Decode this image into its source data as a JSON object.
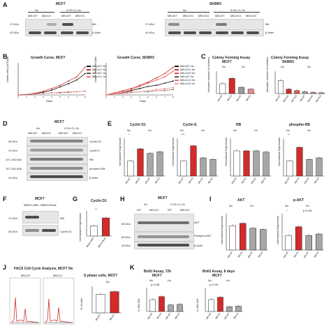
{
  "panels": {
    "A": {
      "label": "A",
      "left": {
        "title": "MCF7",
        "cond1": "Nx",
        "cond2": "0.2% O₂ Hx",
        "lanes": [
          "MB-WT",
          "MB-KO",
          "MB-WT",
          "MB-KO"
        ],
        "kda": [
          "17 kDa",
          "42 kDa"
        ],
        "rows": [
          "Mb",
          "β-Actin"
        ]
      },
      "right": {
        "title": "SKBR3",
        "cond1": "Nx",
        "cond2": "0.2% O₂ Hx",
        "lanes": [
          "MB-WT",
          "MB-KO1",
          "MB-KO2",
          "MB-WT",
          "MB-KO1",
          "MB-KO2"
        ],
        "kda": [
          "17 kDa",
          "42 kDa"
        ],
        "rows": [
          "Mb",
          "β-Actin"
        ]
      }
    },
    "B": {
      "label": "B",
      "left_title": "Growth Curve, MCF7",
      "right_title": "Growth Curve, SKBR3",
      "ylabel": "Viable cells [x10⁴]/ml",
      "xlabel": "Days",
      "left_legend": [
        "MB-WT, Nx",
        "MB-KO, Nx",
        "MB-WT, Hx",
        "MB-KO, Hx"
      ],
      "right_legend": [
        "MB-WT, Nx",
        "MB-KO1 Nx",
        "MB-KO2 Nx",
        "MB-WT Hx",
        "MB-KO1 Hx",
        "MB-KO2 Hx"
      ]
    },
    "C": {
      "label": "C",
      "left_title": "Colony Forming Assay",
      "left_sub": "MCF7",
      "right_title": "Colony Forming Assay",
      "right_sub": "SKBR3",
      "ylabel": "Absolute number of colonies",
      "cond1": "Nx",
      "cond2": "Hx",
      "left_x": [
        "MB-WT",
        "MB-KO",
        "MB-WT",
        "MB-KO"
      ],
      "right_x": [
        "MB-WT",
        "MB-KO1",
        "MB-KO2",
        "MB-WT",
        "MB-KO1",
        "MB-KO2"
      ]
    },
    "D": {
      "label": "D",
      "title": "MCF7",
      "cond1": "Nx",
      "cond2": "0.2% O₂ Hx",
      "lanes": [
        "MB-WT",
        "MB-KO",
        "MB-WT",
        "MB-KO"
      ],
      "kda": [
        "36 kDa",
        "47 kDa",
        "107-145 kDa",
        "107-145 kDa",
        "42 kDa"
      ],
      "rows": [
        "Cyclin D1",
        "Cyclin E",
        "RB",
        "phospho-RB",
        "β-Actin"
      ]
    },
    "E": {
      "label": "E",
      "ylabel": "Normalized Expression",
      "sets": [
        {
          "title": "Cyclin D1",
          "sig": "*",
          "x": [
            "MB-WT",
            "MB-KO",
            "MB-WT",
            "MB-KO"
          ]
        },
        {
          "title": "Cyclin E",
          "sig": "***",
          "x": [
            "MB-WT",
            "MB-KO",
            "MB-WT",
            "MB-KO"
          ]
        },
        {
          "title": "RB",
          "sig": "",
          "x": [
            "MB-WT",
            "MB-KO",
            "MB-WT",
            "MB-KO"
          ]
        },
        {
          "title": "phospho-RB",
          "sig": "**",
          "x": [
            "MB-WT",
            "MB-KO",
            "MB-WT",
            "MB-KO"
          ]
        }
      ],
      "cond1": "Nx",
      "cond2": "Hx"
    },
    "F": {
      "label": "F",
      "title": "MCF7",
      "lanes": [
        "MBKO-WBn",
        "MBKO-Mock"
      ],
      "kda": [
        "17 kDa",
        "36 kDa"
      ],
      "rows": [
        "MB",
        "Cyclin D1"
      ]
    },
    "G": {
      "label": "G",
      "title": "Cyclin D1",
      "sig": "**",
      "ylabel": "Normalized Expression",
      "x": [
        "MBKO-WBn",
        "MBKO-Mock"
      ]
    },
    "H": {
      "label": "H",
      "title": "MCF7",
      "cond1": "Nx",
      "cond2": "0.2% O₂ Hx",
      "lanes": [
        "WT",
        "MB-KO",
        "WT",
        "MB-KO"
      ],
      "kda": [
        "60 kDa",
        "60 kDa",
        "42 kDa"
      ],
      "rows": [
        "AKT",
        "Phospho-AKT",
        "β-Actin"
      ]
    },
    "I": {
      "label": "I",
      "left_title": "AKT",
      "right_title": "p-AKT",
      "ylabel": "Normalized Expression",
      "cond1": "Nx",
      "cond2": "Hx",
      "sig": "*",
      "pval": "p=0.08",
      "x": [
        "MB-WT",
        "MB-KO",
        "MB-WT",
        "MB-KO"
      ]
    },
    "J": {
      "label": "J",
      "title": "FACS Cell Cycle Analysis, MCF7 Nx",
      "left_sub": "MB-WT",
      "right_sub": "MB-KO",
      "bar_title": "S phase cells, MCF7",
      "cond": "Nx",
      "ylabel": "% of cells",
      "x": [
        "MB-WT",
        "MB-KO"
      ]
    },
    "K": {
      "label": "K",
      "left_title": "BrdU Assay, 72h",
      "left_sub": "MCF7",
      "right_title": "BrdU Assay, 8 days",
      "right_sub": "MCF7",
      "ylabel": "A 450-620",
      "cond1": "Nx",
      "cond2": "Hx",
      "left_p": "p=0.08",
      "right_p": "p=0.06",
      "x": [
        "MB-WT",
        "MB-KO",
        "MB-WT",
        "MB-KO"
      ]
    }
  },
  "chart_data": [
    {
      "type": "line",
      "title": "Growth Curve, MCF7",
      "xlabel": "Days",
      "ylabel": "Viable cells [x10⁴]/ml",
      "x": [
        0,
        1,
        2,
        3,
        4,
        5,
        6,
        7,
        8
      ],
      "series": [
        {
          "name": "MB-WT, Nx",
          "values": [
            0,
            1,
            2,
            5,
            9,
            15,
            21,
            28,
            40
          ]
        },
        {
          "name": "MB-KO, Nx",
          "values": [
            0,
            1,
            3,
            7,
            12,
            18,
            26,
            34,
            52
          ]
        },
        {
          "name": "MB-WT, Hx",
          "values": [
            0,
            1,
            2,
            3,
            4,
            4,
            5,
            6,
            7
          ]
        },
        {
          "name": "MB-KO, Hx",
          "values": [
            0,
            1,
            2,
            3,
            4,
            5,
            6,
            6,
            7
          ]
        }
      ],
      "ylim": [
        0,
        60
      ]
    },
    {
      "type": "line",
      "title": "Growth Curve, SKBR3",
      "xlabel": "Days",
      "ylabel": "Viable cells [x10⁴]/ml",
      "x": [
        0,
        1,
        2,
        3,
        4,
        5,
        6,
        7,
        8
      ],
      "series": [
        {
          "name": "MB-WT, Nx",
          "values": [
            0,
            1,
            2,
            4,
            6,
            8,
            9,
            11,
            13
          ]
        },
        {
          "name": "MB-KO1 Nx",
          "values": [
            0,
            2,
            4,
            6,
            9,
            12,
            16,
            20,
            26
          ]
        },
        {
          "name": "MB-KO2 Nx",
          "values": [
            0,
            1,
            3,
            5,
            8,
            11,
            14,
            17,
            22
          ]
        },
        {
          "name": "MB-WT Hx",
          "values": [
            0,
            1,
            2,
            2,
            3,
            3,
            4,
            4,
            5
          ]
        },
        {
          "name": "MB-KO1 Hx",
          "values": [
            0,
            1,
            2,
            3,
            3,
            4,
            5,
            6,
            7
          ]
        },
        {
          "name": "MB-KO2 Hx",
          "values": [
            0,
            1,
            1,
            2,
            3,
            4,
            4,
            5,
            6
          ]
        }
      ],
      "ylim": [
        0,
        30
      ]
    },
    {
      "type": "bar",
      "title": "Colony Forming Assay MCF7",
      "categories": [
        "MB-WT Nx",
        "MB-KO Nx",
        "MB-WT Hx",
        "MB-KO Hx"
      ],
      "values": [
        110,
        170,
        70,
        50
      ],
      "ylim": [
        0,
        250
      ]
    },
    {
      "type": "bar",
      "title": "Colony Forming Assay SKBR3",
      "categories": [
        "MB-WT Nx",
        "MB-KO1 Nx",
        "MB-KO2 Nx",
        "MB-WT Hx",
        "MB-KO1 Hx",
        "MB-KO2 Hx"
      ],
      "values": [
        35,
        12,
        8,
        5,
        3,
        2
      ],
      "ylim": [
        0,
        60
      ]
    },
    {
      "type": "bar",
      "title": "Cyclin D1",
      "categories": [
        "MB-WT Nx",
        "MB-KO Nx",
        "MB-WT Hx",
        "MB-KO Hx"
      ],
      "values": [
        1.0,
        1.8,
        1.5,
        1.6
      ],
      "ylim": [
        0,
        2.5
      ]
    },
    {
      "type": "bar",
      "title": "Cyclin E",
      "categories": [
        "MB-WT Nx",
        "MB-KO Nx",
        "MB-WT Hx",
        "MB-KO Hx"
      ],
      "values": [
        1.0,
        2.0,
        1.2,
        1.1
      ],
      "ylim": [
        0,
        2.5
      ]
    },
    {
      "type": "bar",
      "title": "RB",
      "categories": [
        "MB-WT Nx",
        "MB-KO Nx",
        "MB-WT Hx",
        "MB-KO Hx"
      ],
      "values": [
        1.0,
        1.0,
        1.0,
        0.95
      ],
      "ylim": [
        0,
        1.5
      ]
    },
    {
      "type": "bar",
      "title": "phospho-RB",
      "categories": [
        "MB-WT Nx",
        "MB-KO Nx",
        "MB-WT Hx",
        "MB-KO Hx"
      ],
      "values": [
        1.0,
        1.9,
        1.1,
        1.2
      ],
      "ylim": [
        0,
        2.5
      ]
    },
    {
      "type": "bar",
      "title": "Cyclin D1",
      "categories": [
        "MBKO-WBn",
        "MBKO-Mock"
      ],
      "values": [
        1.0,
        1.8
      ],
      "ylim": [
        0,
        2.5
      ]
    },
    {
      "type": "bar",
      "title": "AKT",
      "categories": [
        "MB-WT Nx",
        "MB-KO Nx",
        "MB-WT Hx",
        "MB-KO Hx"
      ],
      "values": [
        1.0,
        1.1,
        0.9,
        0.85
      ],
      "ylim": [
        0,
        1.5
      ]
    },
    {
      "type": "bar",
      "title": "p-AKT",
      "categories": [
        "MB-WT Nx",
        "MB-KO Nx",
        "MB-WT Hx",
        "MB-KO Hx"
      ],
      "values": [
        1.0,
        1.6,
        1.0,
        1.1
      ],
      "ylim": [
        0,
        2.5
      ]
    },
    {
      "type": "bar",
      "title": "S phase cells, MCF7",
      "categories": [
        "MB-WT",
        "MB-KO"
      ],
      "values": [
        28,
        32
      ],
      "ylim": [
        0,
        40
      ]
    },
    {
      "type": "bar",
      "title": "BrdU Assay, 72h",
      "categories": [
        "MB-WT Nx",
        "MB-KO Nx",
        "MB-WT Hx",
        "MB-KO Hx"
      ],
      "values": [
        1.0,
        1.25,
        0.55,
        0.6
      ],
      "ylim": [
        0,
        2.0
      ]
    },
    {
      "type": "bar",
      "title": "BrdU Assay, 8 days",
      "categories": [
        "MB-WT Nx",
        "MB-KO Nx",
        "MB-WT Hx",
        "MB-KO Hx"
      ],
      "values": [
        1.0,
        1.2,
        0.4,
        0.45
      ],
      "ylim": [
        0,
        2.0
      ]
    }
  ]
}
